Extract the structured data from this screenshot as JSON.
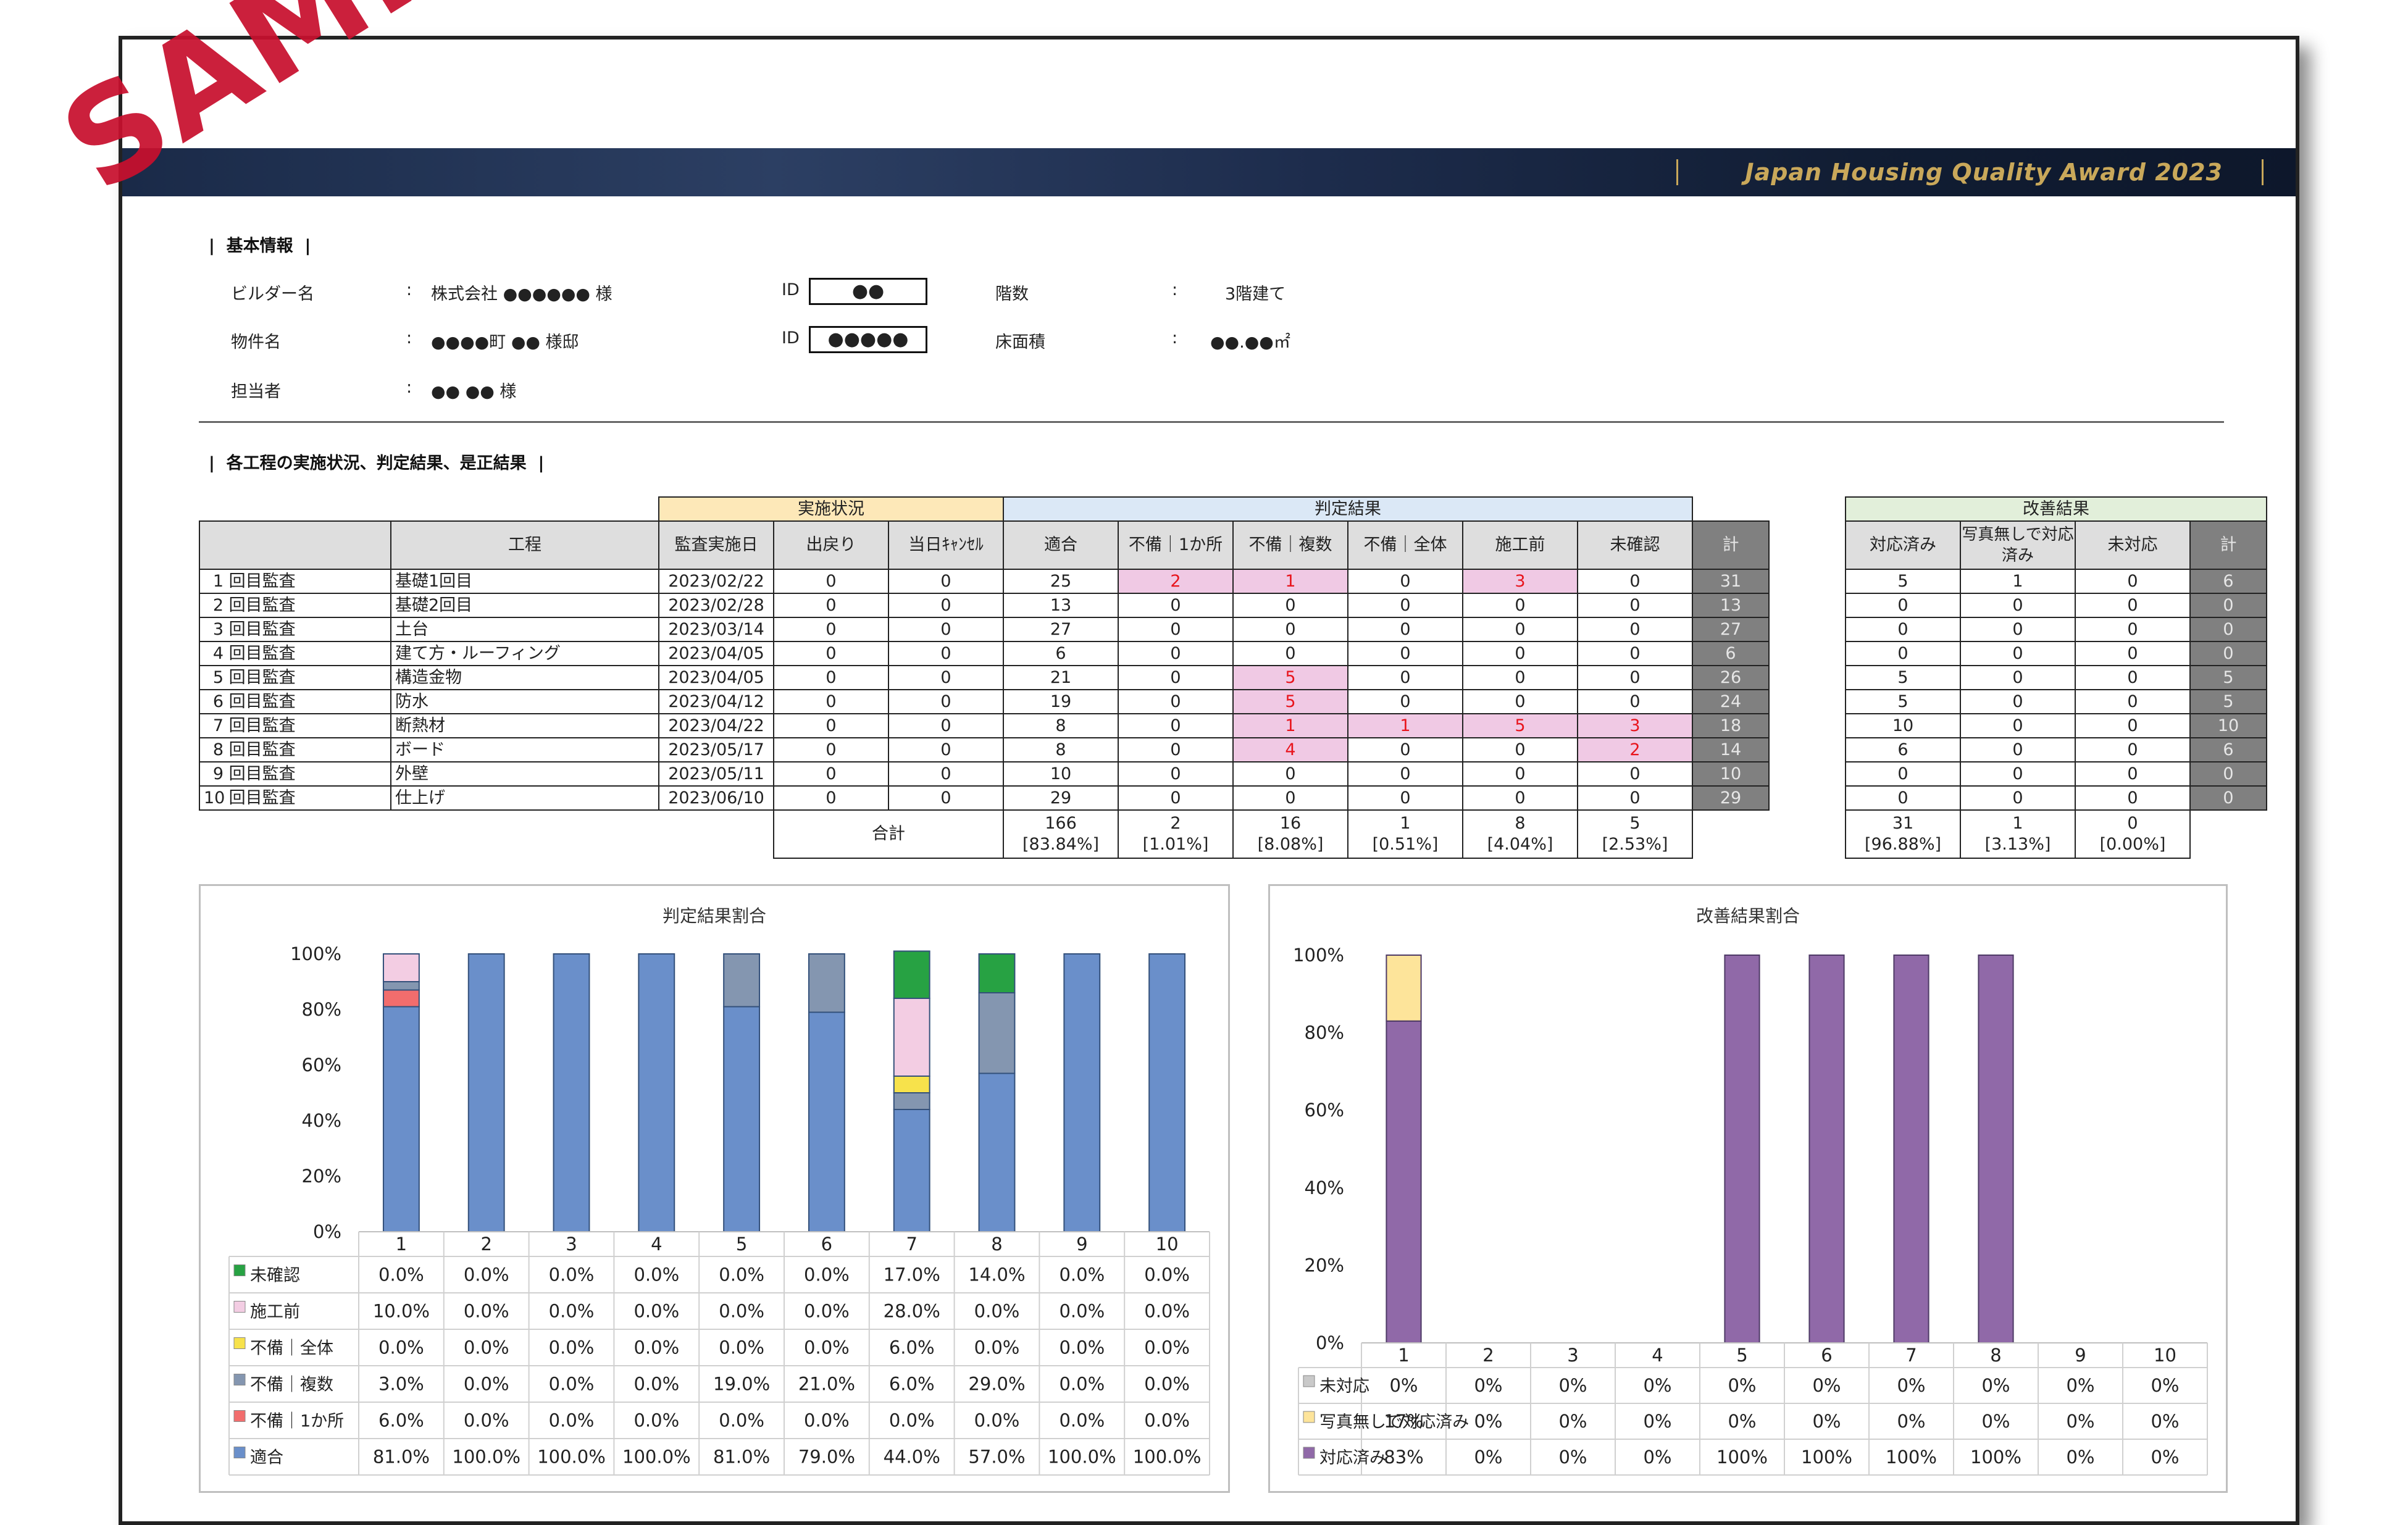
{
  "banner": {
    "title": "Japan Housing Quality Award 2023"
  },
  "basic": {
    "section": "基本情報",
    "builder_label": "ビルダー名",
    "builder_value": "株式会社 ●●●●●● 様",
    "property_label": "物件名",
    "property_value": "●●●●町 ●● 様邸",
    "person_label": "担当者",
    "person_value": "●● ●● 様",
    "colon": ":",
    "id_label": "ID",
    "id1": "●●",
    "id2": "●●●●●",
    "floors_label": "階数",
    "floors_value": "3階建て",
    "area_label": "床面積",
    "area_value": "●●.●●㎡"
  },
  "section2": "各工程の実施状況、判定結果、是正結果",
  "table": {
    "group_headers": [
      "実施状況",
      "判定結果",
      "改善結果"
    ],
    "headers": [
      "工程",
      "監査実施日",
      "出戻り",
      "当日ｷｬﾝｾﾙ",
      "適合",
      "不備｜1か所",
      "不備｜複数",
      "不備｜全体",
      "施工前",
      "未確認",
      "計",
      "対応済み",
      "写真無しで対応済み",
      "未対応",
      "計"
    ],
    "rows": [
      {
        "no": "1",
        "round": "回目監査",
        "process": "基礎1回目",
        "date": "2023/02/22",
        "back": "0",
        "cancel": "0",
        "ok": "25",
        "d1": "2",
        "d2": "1",
        "d3": "0",
        "d4": "3",
        "d5": "0",
        "total": "31",
        "r1": "5",
        "r2": "1",
        "r3": "0",
        "rtotal": "6"
      },
      {
        "no": "2",
        "round": "回目監査",
        "process": "基礎2回目",
        "date": "2023/02/28",
        "back": "0",
        "cancel": "0",
        "ok": "13",
        "d1": "0",
        "d2": "0",
        "d3": "0",
        "d4": "0",
        "d5": "0",
        "total": "13",
        "r1": "0",
        "r2": "0",
        "r3": "0",
        "rtotal": "0"
      },
      {
        "no": "3",
        "round": "回目監査",
        "process": "土台",
        "date": "2023/03/14",
        "back": "0",
        "cancel": "0",
        "ok": "27",
        "d1": "0",
        "d2": "0",
        "d3": "0",
        "d4": "0",
        "d5": "0",
        "total": "27",
        "r1": "0",
        "r2": "0",
        "r3": "0",
        "rtotal": "0"
      },
      {
        "no": "4",
        "round": "回目監査",
        "process": "建て方・ルーフィング",
        "date": "2023/04/05",
        "back": "0",
        "cancel": "0",
        "ok": "6",
        "d1": "0",
        "d2": "0",
        "d3": "0",
        "d4": "0",
        "d5": "0",
        "total": "6",
        "r1": "0",
        "r2": "0",
        "r3": "0",
        "rtotal": "0"
      },
      {
        "no": "5",
        "round": "回目監査",
        "process": "構造金物",
        "date": "2023/04/05",
        "back": "0",
        "cancel": "0",
        "ok": "21",
        "d1": "0",
        "d2": "5",
        "d3": "0",
        "d4": "0",
        "d5": "0",
        "total": "26",
        "r1": "5",
        "r2": "0",
        "r3": "0",
        "rtotal": "5"
      },
      {
        "no": "6",
        "round": "回目監査",
        "process": "防水",
        "date": "2023/04/12",
        "back": "0",
        "cancel": "0",
        "ok": "19",
        "d1": "0",
        "d2": "5",
        "d3": "0",
        "d4": "0",
        "d5": "0",
        "total": "24",
        "r1": "5",
        "r2": "0",
        "r3": "0",
        "rtotal": "5"
      },
      {
        "no": "7",
        "round": "回目監査",
        "process": "断熱材",
        "date": "2023/04/22",
        "back": "0",
        "cancel": "0",
        "ok": "8",
        "d1": "0",
        "d2": "1",
        "d3": "1",
        "d4": "5",
        "d5": "3",
        "total": "18",
        "r1": "10",
        "r2": "0",
        "r3": "0",
        "rtotal": "10"
      },
      {
        "no": "8",
        "round": "回目監査",
        "process": "ボード",
        "date": "2023/05/17",
        "back": "0",
        "cancel": "0",
        "ok": "8",
        "d1": "0",
        "d2": "4",
        "d3": "0",
        "d4": "0",
        "d5": "2",
        "total": "14",
        "r1": "6",
        "r2": "0",
        "r3": "0",
        "rtotal": "6"
      },
      {
        "no": "9",
        "round": "回目監査",
        "process": "外壁",
        "date": "2023/05/11",
        "back": "0",
        "cancel": "0",
        "ok": "10",
        "d1": "0",
        "d2": "0",
        "d3": "0",
        "d4": "0",
        "d5": "0",
        "total": "10",
        "r1": "0",
        "r2": "0",
        "r3": "0",
        "rtotal": "0"
      },
      {
        "no": "10",
        "round": "回目監査",
        "process": "仕上げ",
        "date": "2023/06/10",
        "back": "0",
        "cancel": "0",
        "ok": "29",
        "d1": "0",
        "d2": "0",
        "d3": "0",
        "d4": "0",
        "d5": "0",
        "total": "29",
        "r1": "0",
        "r2": "0",
        "r3": "0",
        "rtotal": "0"
      }
    ],
    "total_label": "合計",
    "totals": [
      "166",
      "2",
      "16",
      "1",
      "8",
      "5"
    ],
    "totals_pct": [
      "[83.84%]",
      "[1.01%]",
      "[8.08%]",
      "[0.51%]",
      "[4.04%]",
      "[2.53%]"
    ],
    "rtotals": [
      "31",
      "1",
      "0"
    ],
    "rtotals_pct": [
      "[96.88%]",
      "[3.13%]",
      "[0.00%]"
    ],
    "pink_cells": [
      "0.d1",
      "0.d2",
      "0.d4",
      "4.d2",
      "5.d2",
      "6.d2",
      "6.d3",
      "6.d4",
      "6.d5",
      "7.d2",
      "7.d5"
    ]
  },
  "chart_data": [
    {
      "type": "bar",
      "stacked": true,
      "title": "判定結果割合",
      "categories": [
        "1",
        "2",
        "3",
        "4",
        "5",
        "6",
        "7",
        "8",
        "9",
        "10"
      ],
      "ylim": [
        0,
        100
      ],
      "yticks": [
        "0%",
        "20%",
        "40%",
        "60%",
        "80%",
        "100%"
      ],
      "series": [
        {
          "name": "適合",
          "color": "#6a8fca",
          "values": [
            81.0,
            100.0,
            100.0,
            100.0,
            81.0,
            79.0,
            44.0,
            57.0,
            100.0,
            100.0
          ],
          "labels": [
            "81.0%",
            "100.0%",
            "100.0%",
            "100.0%",
            "81.0%",
            "79.0%",
            "44.0%",
            "57.0%",
            "100.0%",
            "100.0%"
          ]
        },
        {
          "name": "不備｜1か所",
          "color": "#f26d6d",
          "values": [
            6.0,
            0,
            0,
            0,
            0,
            0,
            0,
            0,
            0,
            0
          ],
          "labels": [
            "6.0%",
            "0.0%",
            "0.0%",
            "0.0%",
            "0.0%",
            "0.0%",
            "0.0%",
            "0.0%",
            "0.0%",
            "0.0%"
          ]
        },
        {
          "name": "不備｜複数",
          "color": "#8496b0",
          "values": [
            3.0,
            0,
            0,
            0,
            19.0,
            21.0,
            6.0,
            29.0,
            0,
            0
          ],
          "labels": [
            "3.0%",
            "0.0%",
            "0.0%",
            "0.0%",
            "19.0%",
            "21.0%",
            "6.0%",
            "29.0%",
            "0.0%",
            "0.0%"
          ]
        },
        {
          "name": "不備｜全体",
          "color": "#f7e24b",
          "values": [
            0,
            0,
            0,
            0,
            0,
            0,
            6.0,
            0,
            0,
            0
          ],
          "labels": [
            "0.0%",
            "0.0%",
            "0.0%",
            "0.0%",
            "0.0%",
            "0.0%",
            "6.0%",
            "0.0%",
            "0.0%",
            "0.0%"
          ]
        },
        {
          "name": "施工前",
          "color": "#f3cde3",
          "values": [
            10.0,
            0,
            0,
            0,
            0,
            0,
            28.0,
            0,
            0,
            0
          ],
          "labels": [
            "10.0%",
            "0.0%",
            "0.0%",
            "0.0%",
            "0.0%",
            "0.0%",
            "28.0%",
            "0.0%",
            "0.0%",
            "0.0%"
          ]
        },
        {
          "name": "未確認",
          "color": "#27a243",
          "values": [
            0,
            0,
            0,
            0,
            0,
            0,
            17.0,
            14.0,
            0,
            0
          ],
          "labels": [
            "0.0%",
            "0.0%",
            "0.0%",
            "0.0%",
            "0.0%",
            "0.0%",
            "17.0%",
            "14.0%",
            "0.0%",
            "0.0%"
          ]
        }
      ]
    },
    {
      "type": "bar",
      "stacked": true,
      "title": "改善結果割合",
      "categories": [
        "1",
        "2",
        "3",
        "4",
        "5",
        "6",
        "7",
        "8",
        "9",
        "10"
      ],
      "ylim": [
        0,
        100
      ],
      "yticks": [
        "0%",
        "20%",
        "40%",
        "60%",
        "80%",
        "100%"
      ],
      "series": [
        {
          "name": "対応済み",
          "color": "#9069a8",
          "values": [
            83,
            0,
            0,
            0,
            100,
            100,
            100,
            100,
            0,
            0
          ],
          "labels": [
            "83%",
            "0%",
            "0%",
            "0%",
            "100%",
            "100%",
            "100%",
            "100%",
            "0%",
            "0%"
          ]
        },
        {
          "name": "写真無しで対応済み",
          "color": "#fde49a",
          "values": [
            17,
            0,
            0,
            0,
            0,
            0,
            0,
            0,
            0,
            0
          ],
          "labels": [
            "17%",
            "0%",
            "0%",
            "0%",
            "0%",
            "0%",
            "0%",
            "0%",
            "0%",
            "0%"
          ]
        },
        {
          "name": "未対応",
          "color": "#c9c9c9",
          "values": [
            0,
            0,
            0,
            0,
            0,
            0,
            0,
            0,
            0,
            0
          ],
          "labels": [
            "0%",
            "0%",
            "0%",
            "0%",
            "0%",
            "0%",
            "0%",
            "0%",
            "0%",
            "0%"
          ]
        }
      ]
    }
  ],
  "stamp": "SAMPLE"
}
